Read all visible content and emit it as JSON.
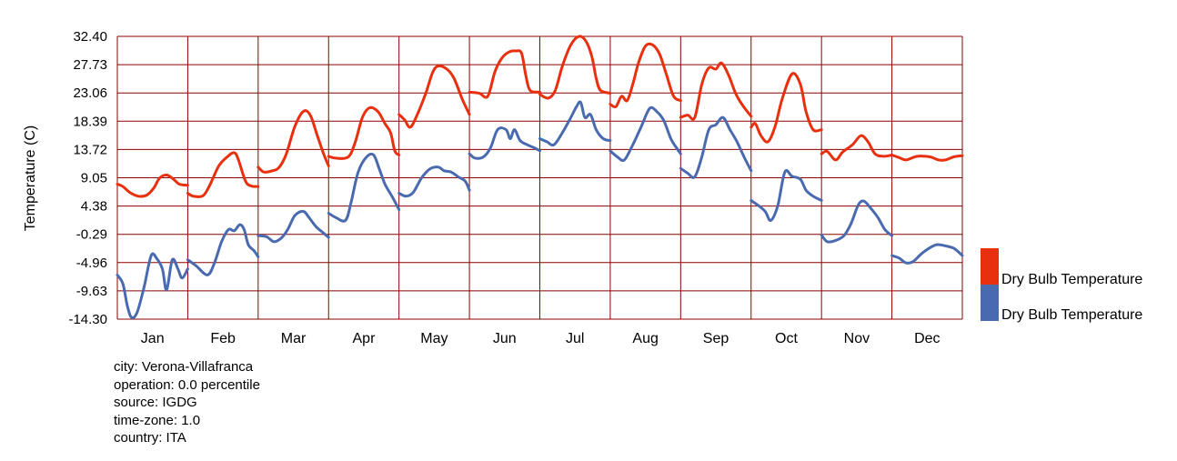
{
  "chart_data": {
    "type": "line",
    "ylabel": "Temperature (C)",
    "xlabel": "",
    "ylim": [
      -14.3,
      32.4
    ],
    "yticks": [
      "32.40",
      "27.73",
      "23.06",
      "18.39",
      "13.72",
      "9.05",
      "4.38",
      "-0.29",
      "-4.96",
      "-9.63",
      "-14.30"
    ],
    "categories": [
      "Jan",
      "Feb",
      "Mar",
      "Apr",
      "May",
      "Jun",
      "Jul",
      "Aug",
      "Sep",
      "Oct",
      "Nov",
      "Dec"
    ],
    "grid": true,
    "legend_position": "right",
    "colors": {
      "series_1": "#e8300e",
      "series_2": "#4a6aaf",
      "grid": "#8b0000"
    },
    "series": [
      {
        "name": "Dry Bulb Temperature",
        "color": "#e8300e",
        "months": [
          [
            [
              0,
              8.0
            ],
            [
              0.08,
              7.6
            ],
            [
              0.18,
              6.6
            ],
            [
              0.3,
              6.0
            ],
            [
              0.42,
              6.2
            ],
            [
              0.52,
              7.4
            ],
            [
              0.6,
              9.0
            ],
            [
              0.7,
              9.5
            ],
            [
              0.8,
              8.8
            ],
            [
              0.88,
              8.0
            ],
            [
              1,
              7.8
            ]
          ],
          [
            [
              0,
              6.5
            ],
            [
              0.08,
              6.0
            ],
            [
              0.22,
              6.1
            ],
            [
              0.32,
              8.0
            ],
            [
              0.44,
              11.0
            ],
            [
              0.56,
              12.5
            ],
            [
              0.66,
              13.2
            ],
            [
              0.72,
              12.0
            ],
            [
              0.82,
              8.5
            ],
            [
              0.9,
              7.7
            ],
            [
              1,
              7.6
            ]
          ],
          [
            [
              0,
              10.8
            ],
            [
              0.08,
              10.0
            ],
            [
              0.2,
              10.2
            ],
            [
              0.3,
              10.8
            ],
            [
              0.4,
              13.0
            ],
            [
              0.52,
              17.5
            ],
            [
              0.64,
              20.0
            ],
            [
              0.74,
              19.4
            ],
            [
              0.84,
              16.0
            ],
            [
              0.93,
              13.0
            ],
            [
              1,
              11.0
            ]
          ],
          [
            [
              0,
              12.6
            ],
            [
              0.1,
              12.3
            ],
            [
              0.28,
              12.5
            ],
            [
              0.38,
              15.0
            ],
            [
              0.48,
              19.0
            ],
            [
              0.58,
              20.6
            ],
            [
              0.7,
              20.0
            ],
            [
              0.8,
              18.0
            ],
            [
              0.88,
              16.5
            ],
            [
              0.94,
              13.5
            ],
            [
              1,
              12.8
            ]
          ],
          [
            [
              0,
              19.5
            ],
            [
              0.08,
              18.6
            ],
            [
              0.16,
              17.4
            ],
            [
              0.26,
              19.5
            ],
            [
              0.38,
              23.0
            ],
            [
              0.48,
              26.5
            ],
            [
              0.56,
              27.5
            ],
            [
              0.68,
              27.0
            ],
            [
              0.78,
              25.5
            ],
            [
              0.9,
              22.0
            ],
            [
              1,
              19.5
            ]
          ],
          [
            [
              0,
              23.2
            ],
            [
              0.14,
              23.0
            ],
            [
              0.26,
              22.5
            ],
            [
              0.36,
              26.5
            ],
            [
              0.46,
              28.8
            ],
            [
              0.56,
              29.8
            ],
            [
              0.66,
              30.0
            ],
            [
              0.74,
              29.6
            ],
            [
              0.8,
              26.0
            ],
            [
              0.86,
              23.5
            ],
            [
              1,
              23.2
            ]
          ],
          [
            [
              0,
              22.8
            ],
            [
              0.12,
              22.2
            ],
            [
              0.22,
              23.5
            ],
            [
              0.32,
              27.5
            ],
            [
              0.44,
              31.0
            ],
            [
              0.56,
              32.4
            ],
            [
              0.66,
              31.5
            ],
            [
              0.74,
              29.0
            ],
            [
              0.8,
              25.5
            ],
            [
              0.86,
              23.5
            ],
            [
              1,
              23.0
            ]
          ],
          [
            [
              0,
              21.2
            ],
            [
              0.08,
              20.8
            ],
            [
              0.16,
              22.5
            ],
            [
              0.24,
              21.8
            ],
            [
              0.32,
              24.5
            ],
            [
              0.4,
              28.0
            ],
            [
              0.5,
              30.8
            ],
            [
              0.6,
              31.0
            ],
            [
              0.7,
              29.5
            ],
            [
              0.8,
              26.0
            ],
            [
              0.9,
              22.5
            ],
            [
              1,
              21.8
            ]
          ],
          [
            [
              0,
              19.0
            ],
            [
              0.1,
              19.4
            ],
            [
              0.2,
              19.0
            ],
            [
              0.3,
              24.5
            ],
            [
              0.4,
              27.2
            ],
            [
              0.5,
              27.0
            ],
            [
              0.58,
              28.0
            ],
            [
              0.68,
              26.0
            ],
            [
              0.78,
              23.0
            ],
            [
              0.88,
              21.0
            ],
            [
              1,
              19.2
            ]
          ],
          [
            [
              0,
              17.4
            ],
            [
              0.06,
              18.0
            ],
            [
              0.14,
              16.0
            ],
            [
              0.24,
              15.0
            ],
            [
              0.34,
              17.5
            ],
            [
              0.44,
              22.0
            ],
            [
              0.58,
              26.2
            ],
            [
              0.7,
              24.5
            ],
            [
              0.78,
              20.0
            ],
            [
              0.88,
              17.0
            ],
            [
              1,
              17.0
            ]
          ],
          [
            [
              0,
              13.0
            ],
            [
              0.08,
              13.4
            ],
            [
              0.2,
              12.0
            ],
            [
              0.3,
              13.3
            ],
            [
              0.44,
              14.5
            ],
            [
              0.56,
              16.0
            ],
            [
              0.66,
              15.0
            ],
            [
              0.76,
              13.0
            ],
            [
              0.88,
              12.6
            ],
            [
              1,
              12.8
            ]
          ],
          [
            [
              0,
              12.8
            ],
            [
              0.1,
              12.4
            ],
            [
              0.2,
              12.0
            ],
            [
              0.36,
              12.6
            ],
            [
              0.54,
              12.5
            ],
            [
              0.66,
              12.0
            ],
            [
              0.76,
              12.0
            ],
            [
              0.88,
              12.5
            ],
            [
              1,
              12.7
            ]
          ]
        ]
      },
      {
        "name": "Dry Bulb Temperature",
        "color": "#4a6aaf",
        "months": [
          [
            [
              0,
              -7.0
            ],
            [
              0.08,
              -8.5
            ],
            [
              0.14,
              -12.0
            ],
            [
              0.2,
              -14.0
            ],
            [
              0.28,
              -13.2
            ],
            [
              0.38,
              -9.0
            ],
            [
              0.48,
              -3.8
            ],
            [
              0.56,
              -4.3
            ],
            [
              0.64,
              -6.0
            ],
            [
              0.7,
              -9.5
            ],
            [
              0.78,
              -4.5
            ],
            [
              0.86,
              -6.0
            ],
            [
              0.92,
              -7.5
            ],
            [
              1,
              -6.0
            ]
          ],
          [
            [
              0,
              -4.5
            ],
            [
              0.12,
              -5.5
            ],
            [
              0.28,
              -7.0
            ],
            [
              0.38,
              -5.0
            ],
            [
              0.48,
              -1.5
            ],
            [
              0.58,
              0.5
            ],
            [
              0.66,
              0.3
            ],
            [
              0.74,
              1.3
            ],
            [
              0.8,
              0.5
            ],
            [
              0.86,
              -2.0
            ],
            [
              0.94,
              -3.0
            ],
            [
              1,
              -4.0
            ]
          ],
          [
            [
              0,
              -0.5
            ],
            [
              0.12,
              -0.7
            ],
            [
              0.22,
              -1.5
            ],
            [
              0.32,
              -1.0
            ],
            [
              0.42,
              0.5
            ],
            [
              0.52,
              2.8
            ],
            [
              0.64,
              3.5
            ],
            [
              0.72,
              2.5
            ],
            [
              0.82,
              1.0
            ],
            [
              0.92,
              0.0
            ],
            [
              1,
              -0.8
            ]
          ],
          [
            [
              0,
              3.2
            ],
            [
              0.1,
              2.5
            ],
            [
              0.24,
              2.0
            ],
            [
              0.32,
              5.0
            ],
            [
              0.42,
              10.0
            ],
            [
              0.54,
              12.5
            ],
            [
              0.64,
              12.8
            ],
            [
              0.72,
              10.5
            ],
            [
              0.8,
              8.0
            ],
            [
              0.9,
              6.0
            ],
            [
              1,
              3.8
            ]
          ],
          [
            [
              0,
              6.5
            ],
            [
              0.1,
              6.0
            ],
            [
              0.2,
              6.6
            ],
            [
              0.32,
              9.0
            ],
            [
              0.44,
              10.5
            ],
            [
              0.56,
              10.8
            ],
            [
              0.64,
              10.2
            ],
            [
              0.74,
              10.0
            ],
            [
              0.84,
              9.2
            ],
            [
              0.94,
              8.5
            ],
            [
              1,
              7.0
            ]
          ],
          [
            [
              0,
              13.0
            ],
            [
              0.08,
              12.3
            ],
            [
              0.2,
              12.5
            ],
            [
              0.3,
              14.0
            ],
            [
              0.4,
              17.0
            ],
            [
              0.52,
              17.0
            ],
            [
              0.58,
              15.5
            ],
            [
              0.64,
              17.0
            ],
            [
              0.72,
              15.2
            ],
            [
              0.82,
              14.5
            ],
            [
              0.92,
              14.0
            ],
            [
              1,
              13.5
            ]
          ],
          [
            [
              0,
              15.5
            ],
            [
              0.1,
              15.0
            ],
            [
              0.2,
              14.5
            ],
            [
              0.32,
              16.5
            ],
            [
              0.44,
              19.0
            ],
            [
              0.52,
              20.8
            ],
            [
              0.58,
              21.5
            ],
            [
              0.64,
              19.0
            ],
            [
              0.72,
              19.5
            ],
            [
              0.8,
              17.0
            ],
            [
              0.9,
              15.5
            ],
            [
              1,
              15.2
            ]
          ],
          [
            [
              0,
              13.5
            ],
            [
              0.1,
              12.5
            ],
            [
              0.2,
              12.0
            ],
            [
              0.32,
              14.5
            ],
            [
              0.44,
              17.5
            ],
            [
              0.56,
              20.5
            ],
            [
              0.66,
              20.0
            ],
            [
              0.76,
              18.5
            ],
            [
              0.86,
              15.5
            ],
            [
              0.94,
              14.0
            ],
            [
              1,
              13.0
            ]
          ],
          [
            [
              0,
              10.6
            ],
            [
              0.1,
              9.8
            ],
            [
              0.2,
              9.2
            ],
            [
              0.3,
              12.5
            ],
            [
              0.4,
              17.0
            ],
            [
              0.5,
              17.8
            ],
            [
              0.6,
              19.0
            ],
            [
              0.7,
              17.0
            ],
            [
              0.8,
              15.0
            ],
            [
              0.9,
              12.5
            ],
            [
              1,
              10.2
            ]
          ],
          [
            [
              0,
              5.3
            ],
            [
              0.1,
              4.5
            ],
            [
              0.2,
              3.5
            ],
            [
              0.28,
              2.0
            ],
            [
              0.38,
              4.5
            ],
            [
              0.48,
              10.0
            ],
            [
              0.58,
              9.3
            ],
            [
              0.7,
              8.8
            ],
            [
              0.78,
              7.0
            ],
            [
              0.88,
              6.0
            ],
            [
              1,
              5.3
            ]
          ],
          [
            [
              0,
              -0.4
            ],
            [
              0.08,
              -1.5
            ],
            [
              0.2,
              -1.3
            ],
            [
              0.32,
              -0.5
            ],
            [
              0.42,
              1.5
            ],
            [
              0.52,
              4.5
            ],
            [
              0.6,
              5.2
            ],
            [
              0.7,
              4.0
            ],
            [
              0.8,
              2.5
            ],
            [
              0.9,
              0.5
            ],
            [
              1,
              -0.5
            ]
          ],
          [
            [
              0,
              -3.8
            ],
            [
              0.1,
              -4.2
            ],
            [
              0.2,
              -5.0
            ],
            [
              0.3,
              -4.8
            ],
            [
              0.42,
              -3.5
            ],
            [
              0.54,
              -2.5
            ],
            [
              0.64,
              -2.0
            ],
            [
              0.76,
              -2.2
            ],
            [
              0.88,
              -2.6
            ],
            [
              1,
              -3.8
            ]
          ]
        ]
      }
    ]
  },
  "legend": [
    {
      "label": "Dry Bulb Temperature",
      "color": "#e8300e"
    },
    {
      "label": "Dry Bulb Temperature",
      "color": "#4a6aaf"
    }
  ],
  "meta": {
    "city": "city: Verona-Villafranca",
    "operation": "operation: 0.0 percentile",
    "source": "source: IGDG",
    "timezone": "time-zone: 1.0",
    "country": "country: ITA"
  }
}
